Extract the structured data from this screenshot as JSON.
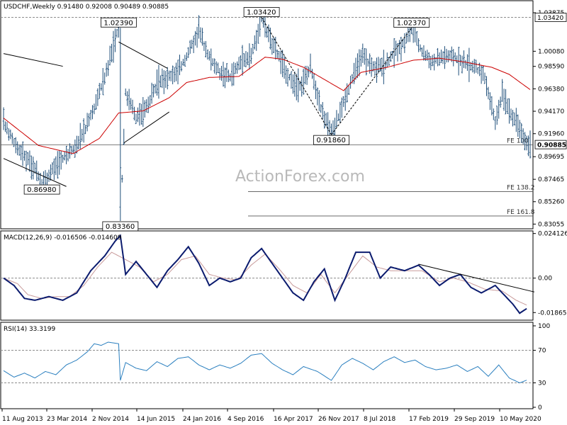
{
  "window": {
    "symbol_line": "USDCHF,Weekly  0.91480 0.92008 0.90489 0.90885",
    "watermark": "ActionForex.com"
  },
  "colors": {
    "bars": "#1f4f7a",
    "ma": "#cc0000",
    "macd": "#0b1b6e",
    "signal": "#c89a9a",
    "rsi": "#2a7fbf",
    "trend": "#000000",
    "grid": "#8c8c8c",
    "last_price_bg": "#ffffff"
  },
  "chart_data": [
    {
      "type": "ohlc",
      "title": "USDCHF,Weekly  0.91480 0.92008 0.90489 0.90885",
      "x_tick_labels": [
        "11 Aug 2013",
        "23 Mar 2014",
        "2 Nov 2014",
        "14 Jun 2015",
        "24 Jan 2016",
        "4 Sep 2016",
        "16 Apr 2017",
        "26 Nov 2017",
        "8 Jul 2018",
        "17 Feb 2019",
        "29 Sep 2019",
        "10 May 2020"
      ],
      "y_tick_labels": [
        "1.03875",
        "1.00080",
        "0.98590",
        "0.96380",
        "0.94170",
        "0.91960",
        "0.89695",
        "0.87465",
        "0.85260",
        "0.83055"
      ],
      "ylim": [
        0.828,
        1.0485
      ],
      "last_price": "0.90885",
      "last_price_value": 0.90885,
      "grid": false,
      "price_path": [
        [
          0,
          0.93
        ],
        [
          8,
          0.905
        ],
        [
          16,
          0.89
        ],
        [
          22,
          0.8698
        ],
        [
          28,
          0.885
        ],
        [
          34,
          0.895
        ],
        [
          40,
          0.905
        ],
        [
          46,
          0.92
        ],
        [
          52,
          0.945
        ],
        [
          58,
          0.975
        ],
        [
          62,
          1.0
        ],
        [
          66,
          1.0239
        ],
        [
          67,
          0.8336
        ],
        [
          70,
          0.96
        ],
        [
          76,
          0.935
        ],
        [
          82,
          0.945
        ],
        [
          88,
          0.97
        ],
        [
          94,
          0.975
        ],
        [
          100,
          0.98
        ],
        [
          106,
          1.0
        ],
        [
          112,
          1.02
        ],
        [
          118,
          0.995
        ],
        [
          124,
          0.98
        ],
        [
          130,
          0.975
        ],
        [
          136,
          0.99
        ],
        [
          142,
          0.995
        ],
        [
          148,
          1.0342
        ],
        [
          152,
          1.015
        ],
        [
          158,
          0.995
        ],
        [
          164,
          0.975
        ],
        [
          170,
          0.965
        ],
        [
          176,
          0.985
        ],
        [
          182,
          0.945
        ],
        [
          188,
          0.9186
        ],
        [
          194,
          0.945
        ],
        [
          200,
          0.975
        ],
        [
          206,
          0.995
        ],
        [
          212,
          0.985
        ],
        [
          218,
          0.985
        ],
        [
          224,
          1.0
        ],
        [
          230,
          1.01
        ],
        [
          234,
          1.0237
        ],
        [
          240,
          1.0
        ],
        [
          246,
          0.99
        ],
        [
          252,
          0.995
        ],
        [
          258,
          0.995
        ],
        [
          264,
          0.99
        ],
        [
          270,
          0.985
        ],
        [
          276,
          0.975
        ],
        [
          282,
          0.93
        ],
        [
          286,
          0.96
        ],
        [
          292,
          0.935
        ],
        [
          296,
          0.925
        ],
        [
          300,
          0.9095
        ],
        [
          302,
          0.90885
        ]
      ],
      "ma_path": [
        [
          0,
          0.935
        ],
        [
          20,
          0.908
        ],
        [
          40,
          0.9
        ],
        [
          55,
          0.915
        ],
        [
          66,
          0.94
        ],
        [
          80,
          0.942
        ],
        [
          95,
          0.955
        ],
        [
          105,
          0.97
        ],
        [
          118,
          0.975
        ],
        [
          135,
          0.976
        ],
        [
          150,
          0.995
        ],
        [
          160,
          0.993
        ],
        [
          172,
          0.985
        ],
        [
          185,
          0.972
        ],
        [
          195,
          0.962
        ],
        [
          205,
          0.98
        ],
        [
          220,
          0.985
        ],
        [
          235,
          0.992
        ],
        [
          250,
          0.994
        ],
        [
          265,
          0.99
        ],
        [
          280,
          0.985
        ],
        [
          290,
          0.978
        ],
        [
          302,
          0.963
        ]
      ],
      "annotations": [
        {
          "label": "1.03420",
          "value": 1.0342,
          "x_index": 148
        },
        {
          "label": "1.02390",
          "value": 1.0239,
          "x_index": 66
        },
        {
          "label": "1.02370",
          "value": 1.0237,
          "x_index": 234
        },
        {
          "label": "0.91860",
          "value": 0.9186,
          "x_index": 188
        },
        {
          "label": "0.86980",
          "value": 0.8698,
          "x_index": 22
        },
        {
          "label": "0.83360",
          "value": 0.8336,
          "x_index": 67
        }
      ],
      "fe_levels": [
        {
          "label": "FE 100",
          "value": 0.9086
        },
        {
          "label": "FE 138.2",
          "value": 0.8625
        },
        {
          "label": "FE 161.8",
          "value": 0.8385
        }
      ],
      "trendlines": [
        [
          [
            0,
            0.9985
          ],
          [
            34,
            0.986
          ]
        ],
        [
          [
            0,
            0.8952
          ],
          [
            36,
            0.8676
          ]
        ],
        [
          [
            66,
            1.01
          ],
          [
            94,
            0.984
          ]
        ],
        [
          [
            69,
            0.9105
          ],
          [
            95,
            0.941
          ]
        ],
        [
          [
            148,
            1.0342
          ],
          [
            188,
            0.9186
          ]
        ],
        [
          [
            188,
            0.9186
          ],
          [
            234,
            1.0237
          ]
        ]
      ],
      "bar_count": 303
    },
    {
      "type": "line",
      "title": "MACD(12,26,9) -0.016506 -0.014609",
      "y_tick_labels": [
        "0.024126",
        "0.00",
        "-0.018657"
      ],
      "ylim": [
        -0.022,
        0.024
      ],
      "series": [
        {
          "name": "MACD",
          "path": [
            [
              0,
              0.0
            ],
            [
              6,
              -0.004
            ],
            [
              12,
              -0.011
            ],
            [
              18,
              -0.012
            ],
            [
              26,
              -0.01
            ],
            [
              34,
              -0.012
            ],
            [
              42,
              -0.008
            ],
            [
              50,
              0.004
            ],
            [
              58,
              0.012
            ],
            [
              64,
              0.02
            ],
            [
              67,
              0.023
            ],
            [
              70,
              0.002
            ],
            [
              76,
              0.009
            ],
            [
              82,
              0.002
            ],
            [
              88,
              -0.005
            ],
            [
              94,
              0.004
            ],
            [
              100,
              0.01
            ],
            [
              106,
              0.017
            ],
            [
              112,
              0.008
            ],
            [
              118,
              -0.004
            ],
            [
              124,
              0.0
            ],
            [
              130,
              -0.002
            ],
            [
              136,
              0.0
            ],
            [
              142,
              0.011
            ],
            [
              148,
              0.016
            ],
            [
              154,
              0.008
            ],
            [
              160,
              0.0
            ],
            [
              166,
              -0.008
            ],
            [
              172,
              -0.012
            ],
            [
              178,
              -0.002
            ],
            [
              184,
              0.005
            ],
            [
              190,
              -0.012
            ],
            [
              196,
              0.0
            ],
            [
              202,
              0.014
            ],
            [
              210,
              0.014
            ],
            [
              216,
              0.0
            ],
            [
              222,
              0.006
            ],
            [
              230,
              0.004
            ],
            [
              238,
              0.007
            ],
            [
              244,
              0.002
            ],
            [
              250,
              -0.004
            ],
            [
              256,
              0.0
            ],
            [
              262,
              0.002
            ],
            [
              268,
              -0.005
            ],
            [
              274,
              -0.008
            ],
            [
              282,
              -0.004
            ],
            [
              288,
              -0.01
            ],
            [
              292,
              -0.014
            ],
            [
              296,
              -0.019
            ],
            [
              300,
              -0.0165
            ]
          ]
        },
        {
          "name": "Signal",
          "path": [
            [
              0,
              0.0
            ],
            [
              8,
              -0.003
            ],
            [
              14,
              -0.009
            ],
            [
              22,
              -0.011
            ],
            [
              30,
              -0.01
            ],
            [
              38,
              -0.01
            ],
            [
              46,
              -0.004
            ],
            [
              54,
              0.006
            ],
            [
              62,
              0.014
            ],
            [
              70,
              0.01
            ],
            [
              78,
              0.006
            ],
            [
              86,
              -0.002
            ],
            [
              94,
              0.002
            ],
            [
              102,
              0.01
            ],
            [
              110,
              0.012
            ],
            [
              118,
              0.002
            ],
            [
              126,
              0.0
            ],
            [
              134,
              -0.001
            ],
            [
              142,
              0.007
            ],
            [
              150,
              0.013
            ],
            [
              158,
              0.005
            ],
            [
              166,
              -0.004
            ],
            [
              174,
              -0.008
            ],
            [
              182,
              0.002
            ],
            [
              190,
              -0.008
            ],
            [
              198,
              0.002
            ],
            [
              206,
              0.012
            ],
            [
              214,
              0.006
            ],
            [
              222,
              0.004
            ],
            [
              230,
              0.004
            ],
            [
              240,
              0.004
            ],
            [
              250,
              -0.002
            ],
            [
              258,
              0.0
            ],
            [
              266,
              -0.002
            ],
            [
              276,
              -0.006
            ],
            [
              286,
              -0.007
            ],
            [
              294,
              -0.012
            ],
            [
              300,
              -0.0146
            ]
          ]
        }
      ],
      "trendline": [
        [
          238,
          0.0075
        ],
        [
          302,
          -0.0075
        ]
      ],
      "grid": false
    },
    {
      "type": "line",
      "title": "RSI(14) 33.3199",
      "y_tick_labels": [
        "100",
        "70",
        "30",
        "0"
      ],
      "ylim": [
        0,
        100
      ],
      "levels": [
        70,
        30
      ],
      "series": [
        {
          "name": "RSI",
          "path": [
            [
              0,
              45
            ],
            [
              6,
              37
            ],
            [
              12,
              42
            ],
            [
              18,
              36
            ],
            [
              24,
              44
            ],
            [
              30,
              40
            ],
            [
              36,
              52
            ],
            [
              42,
              58
            ],
            [
              48,
              68
            ],
            [
              52,
              78
            ],
            [
              56,
              76
            ],
            [
              60,
              80
            ],
            [
              66,
              78
            ],
            [
              67,
              33
            ],
            [
              70,
              55
            ],
            [
              76,
              48
            ],
            [
              82,
              45
            ],
            [
              88,
              56
            ],
            [
              94,
              50
            ],
            [
              100,
              60
            ],
            [
              106,
              62
            ],
            [
              112,
              52
            ],
            [
              118,
              46
            ],
            [
              124,
              52
            ],
            [
              130,
              48
            ],
            [
              136,
              54
            ],
            [
              142,
              64
            ],
            [
              148,
              66
            ],
            [
              154,
              54
            ],
            [
              160,
              46
            ],
            [
              166,
              40
            ],
            [
              172,
              50
            ],
            [
              180,
              44
            ],
            [
              188,
              33
            ],
            [
              194,
              52
            ],
            [
              200,
              60
            ],
            [
              206,
              54
            ],
            [
              212,
              46
            ],
            [
              218,
              56
            ],
            [
              224,
              62
            ],
            [
              230,
              55
            ],
            [
              236,
              58
            ],
            [
              242,
              50
            ],
            [
              248,
              46
            ],
            [
              254,
              48
            ],
            [
              260,
              52
            ],
            [
              266,
              44
            ],
            [
              272,
              50
            ],
            [
              278,
              38
            ],
            [
              284,
              52
            ],
            [
              290,
              36
            ],
            [
              296,
              30
            ],
            [
              300,
              33.3
            ]
          ]
        }
      ],
      "grid": false
    }
  ]
}
